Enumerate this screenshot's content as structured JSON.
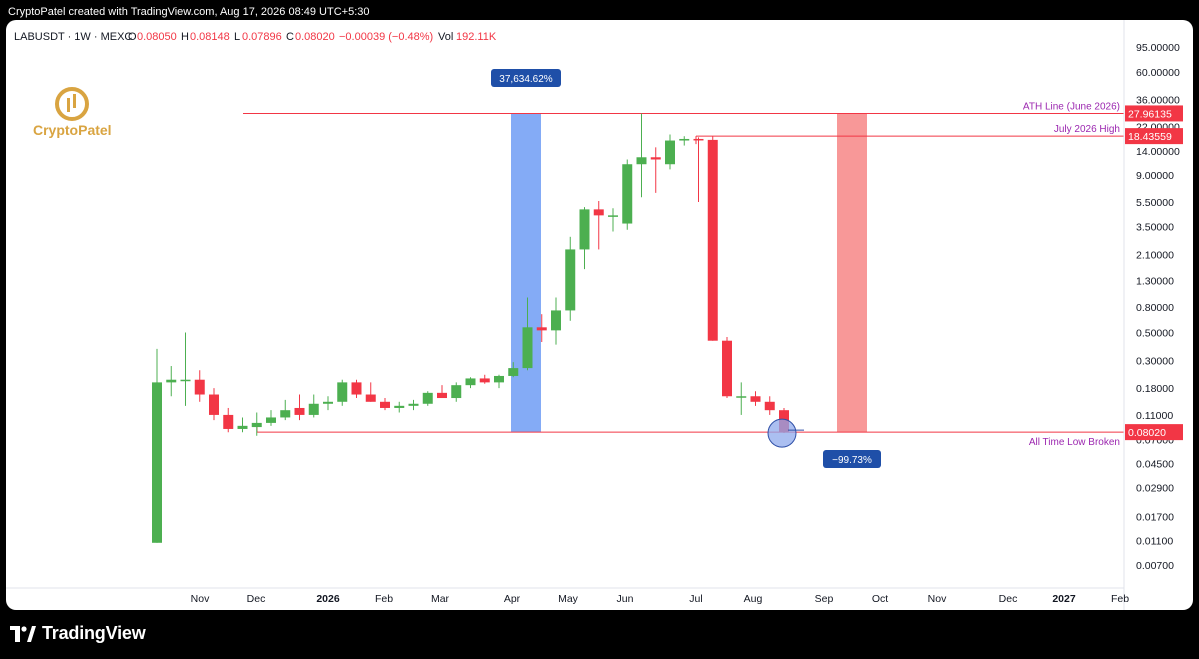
{
  "header": {
    "caption": "CryptoPatel created with TradingView.com, Aug 17, 2026 08:49 UTC+5:30"
  },
  "legend": {
    "symbol": "LABUSDT · 1W · MEXC",
    "o_label": "O",
    "o_value": "0.08050",
    "h_label": "H",
    "h_value": "0.08148",
    "l_label": "L",
    "l_value": "0.07896",
    "c_label": "C",
    "c_value": "0.08020",
    "change": "−0.00039 (−0.48%)",
    "vol_label": "Vol",
    "vol_value": "192.11K"
  },
  "watermark": {
    "text": "CryptoPatel"
  },
  "footer": {
    "brand": "TradingView"
  },
  "colors": {
    "up": "#4caf50",
    "down": "#f23645",
    "line": "#f23645",
    "label_purple": "#9c27b0",
    "blue_zone": "#6f9cf5",
    "red_zone": "#f78d8d",
    "badge": "#1f4fa8"
  },
  "chart_data": {
    "type": "candlestick",
    "y_scale": "log",
    "ylim": [
      0.0055,
      150
    ],
    "y_ticks": [
      "95.00000",
      "60.00000",
      "36.00000",
      "22.00000",
      "14.00000",
      "9.00000",
      "5.50000",
      "3.50000",
      "2.10000",
      "1.30000",
      "0.80000",
      "0.50000",
      "0.30000",
      "0.18000",
      "0.11000",
      "0.07000",
      "0.04500",
      "0.02900",
      "0.01700",
      "0.01100",
      "0.00700"
    ],
    "x_ticks": [
      "Nov",
      "Dec",
      "2026",
      "Feb",
      "Mar",
      "Apr",
      "May",
      "Jun",
      "Jul",
      "Aug",
      "Sep",
      "Oct",
      "Nov",
      "Dec",
      "2027",
      "Feb"
    ],
    "x_ticks_bold": [
      "2026",
      "2027"
    ],
    "candles": [
      {
        "o": 0.0105,
        "h": 0.37,
        "l": 0.0105,
        "c": 0.2
      },
      {
        "o": 0.2,
        "h": 0.27,
        "l": 0.155,
        "c": 0.21
      },
      {
        "o": 0.21,
        "h": 0.5,
        "l": 0.13,
        "c": 0.21
      },
      {
        "o": 0.21,
        "h": 0.25,
        "l": 0.14,
        "c": 0.16
      },
      {
        "o": 0.16,
        "h": 0.18,
        "l": 0.1,
        "c": 0.11
      },
      {
        "o": 0.11,
        "h": 0.125,
        "l": 0.08,
        "c": 0.085
      },
      {
        "o": 0.085,
        "h": 0.105,
        "l": 0.08,
        "c": 0.09
      },
      {
        "o": 0.088,
        "h": 0.115,
        "l": 0.075,
        "c": 0.095
      },
      {
        "o": 0.095,
        "h": 0.12,
        "l": 0.09,
        "c": 0.105
      },
      {
        "o": 0.105,
        "h": 0.145,
        "l": 0.1,
        "c": 0.12
      },
      {
        "o": 0.125,
        "h": 0.16,
        "l": 0.1,
        "c": 0.11
      },
      {
        "o": 0.11,
        "h": 0.16,
        "l": 0.105,
        "c": 0.135
      },
      {
        "o": 0.135,
        "h": 0.155,
        "l": 0.12,
        "c": 0.14
      },
      {
        "o": 0.14,
        "h": 0.21,
        "l": 0.13,
        "c": 0.2
      },
      {
        "o": 0.2,
        "h": 0.21,
        "l": 0.15,
        "c": 0.16
      },
      {
        "o": 0.16,
        "h": 0.2,
        "l": 0.14,
        "c": 0.14
      },
      {
        "o": 0.14,
        "h": 0.15,
        "l": 0.12,
        "c": 0.125
      },
      {
        "o": 0.125,
        "h": 0.14,
        "l": 0.115,
        "c": 0.13
      },
      {
        "o": 0.13,
        "h": 0.145,
        "l": 0.12,
        "c": 0.135
      },
      {
        "o": 0.135,
        "h": 0.17,
        "l": 0.13,
        "c": 0.165
      },
      {
        "o": 0.165,
        "h": 0.19,
        "l": 0.15,
        "c": 0.15
      },
      {
        "o": 0.15,
        "h": 0.2,
        "l": 0.14,
        "c": 0.19
      },
      {
        "o": 0.19,
        "h": 0.22,
        "l": 0.18,
        "c": 0.215
      },
      {
        "o": 0.215,
        "h": 0.23,
        "l": 0.195,
        "c": 0.2
      },
      {
        "o": 0.2,
        "h": 0.23,
        "l": 0.18,
        "c": 0.225
      },
      {
        "o": 0.225,
        "h": 0.29,
        "l": 0.22,
        "c": 0.26
      },
      {
        "o": 0.26,
        "h": 0.95,
        "l": 0.25,
        "c": 0.55
      },
      {
        "o": 0.55,
        "h": 0.7,
        "l": 0.42,
        "c": 0.52
      },
      {
        "o": 0.52,
        "h": 0.95,
        "l": 0.4,
        "c": 0.75
      },
      {
        "o": 0.75,
        "h": 2.9,
        "l": 0.62,
        "c": 2.3
      },
      {
        "o": 2.3,
        "h": 5.0,
        "l": 1.6,
        "c": 4.8
      },
      {
        "o": 4.8,
        "h": 5.6,
        "l": 2.3,
        "c": 4.3
      },
      {
        "o": 4.3,
        "h": 4.9,
        "l": 3.2,
        "c": 4.3
      },
      {
        "o": 3.7,
        "h": 12.0,
        "l": 3.3,
        "c": 11.0
      },
      {
        "o": 11.0,
        "h": 27.96,
        "l": 6.0,
        "c": 12.5
      },
      {
        "o": 12.5,
        "h": 15.0,
        "l": 6.5,
        "c": 12.0
      },
      {
        "o": 11.0,
        "h": 19.0,
        "l": 10.0,
        "c": 17.0
      },
      {
        "o": 17.0,
        "h": 18.4,
        "l": 15.5,
        "c": 17.5
      },
      {
        "o": 17.5,
        "h": 18.0,
        "l": 5.5,
        "c": 17.2
      },
      {
        "o": 17.2,
        "h": 18.4,
        "l": 0.43,
        "c": 0.43
      },
      {
        "o": 0.43,
        "h": 0.46,
        "l": 0.15,
        "c": 0.155
      },
      {
        "o": 0.155,
        "h": 0.2,
        "l": 0.11,
        "c": 0.155
      },
      {
        "o": 0.155,
        "h": 0.17,
        "l": 0.13,
        "c": 0.14
      },
      {
        "o": 0.14,
        "h": 0.155,
        "l": 0.11,
        "c": 0.12
      },
      {
        "o": 0.12,
        "h": 0.125,
        "l": 0.079,
        "c": 0.0802
      }
    ],
    "levels": [
      {
        "value": 27.96135,
        "label": "ATH Line (June 2026)",
        "price_tag": "27.96135"
      },
      {
        "value": 18.43559,
        "label": "July 2026 High",
        "price_tag": "18.43559"
      },
      {
        "value": 0.0802,
        "label": "All Time Low Broken",
        "price_tag": "0.08020"
      }
    ],
    "annotations": [
      {
        "text": "37,634.62%"
      },
      {
        "text": "−99.73%"
      }
    ]
  }
}
